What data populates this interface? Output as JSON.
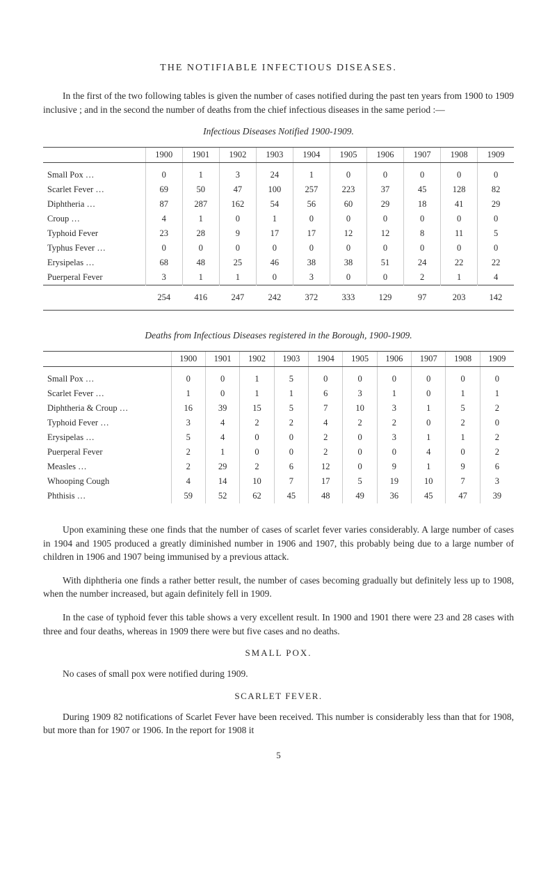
{
  "title": "THE NOTIFIABLE INFECTIOUS DISEASES.",
  "intro": "In the first of the two following tables is given the number of cases notified during the past ten years from 1900 to 1909 inclusive ; and in the second the number of deaths from the chief infectious diseases in the same period :—",
  "table1": {
    "caption": "Infectious Diseases Notified 1900-1909.",
    "years": [
      "1900",
      "1901",
      "1902",
      "1903",
      "1904",
      "1905",
      "1906",
      "1907",
      "1908",
      "1909"
    ],
    "rows": [
      {
        "label": "Small Pox …",
        "v": [
          "0",
          "1",
          "3",
          "24",
          "1",
          "0",
          "0",
          "0",
          "0",
          "0"
        ]
      },
      {
        "label": "Scarlet Fever …",
        "v": [
          "69",
          "50",
          "47",
          "100",
          "257",
          "223",
          "37",
          "45",
          "128",
          "82"
        ]
      },
      {
        "label": "Diphtheria …",
        "v": [
          "87",
          "287",
          "162",
          "54",
          "56",
          "60",
          "29",
          "18",
          "41",
          "29"
        ]
      },
      {
        "label": "Croup …",
        "v": [
          "4",
          "1",
          "0",
          "1",
          "0",
          "0",
          "0",
          "0",
          "0",
          "0"
        ]
      },
      {
        "label": "Typhoid Fever",
        "v": [
          "23",
          "28",
          "9",
          "17",
          "17",
          "12",
          "12",
          "8",
          "11",
          "5"
        ]
      },
      {
        "label": "Typhus Fever …",
        "v": [
          "0",
          "0",
          "0",
          "0",
          "0",
          "0",
          "0",
          "0",
          "0",
          "0"
        ]
      },
      {
        "label": "Erysipelas …",
        "v": [
          "68",
          "48",
          "25",
          "46",
          "38",
          "38",
          "51",
          "24",
          "22",
          "22"
        ]
      },
      {
        "label": "Puerperal Fever",
        "v": [
          "3",
          "1",
          "1",
          "0",
          "3",
          "0",
          "0",
          "2",
          "1",
          "4"
        ]
      }
    ],
    "totals": [
      "254",
      "416",
      "247",
      "242",
      "372",
      "333",
      "129",
      "97",
      "203",
      "142"
    ]
  },
  "table2": {
    "caption": "Deaths from Infectious Diseases registered in the Borough, 1900-1909.",
    "years": [
      "1900",
      "1901",
      "1902",
      "1903",
      "1904",
      "1905",
      "1906",
      "1907",
      "1908",
      "1909"
    ],
    "rows": [
      {
        "label": "Small Pox …",
        "v": [
          "0",
          "0",
          "1",
          "5",
          "0",
          "0",
          "0",
          "0",
          "0",
          "0"
        ]
      },
      {
        "label": "Scarlet Fever …",
        "v": [
          "1",
          "0",
          "1",
          "1",
          "6",
          "3",
          "1",
          "0",
          "1",
          "1"
        ]
      },
      {
        "label": "Diphtheria & Croup …",
        "v": [
          "16",
          "39",
          "15",
          "5",
          "7",
          "10",
          "3",
          "1",
          "5",
          "2"
        ]
      },
      {
        "label": "Typhoid Fever …",
        "v": [
          "3",
          "4",
          "2",
          "2",
          "4",
          "2",
          "2",
          "0",
          "2",
          "0"
        ]
      },
      {
        "label": "Erysipelas …",
        "v": [
          "5",
          "4",
          "0",
          "0",
          "2",
          "0",
          "3",
          "1",
          "1",
          "2"
        ]
      },
      {
        "label": "Puerperal Fever",
        "v": [
          "2",
          "1",
          "0",
          "0",
          "2",
          "0",
          "0",
          "4",
          "0",
          "2"
        ]
      },
      {
        "label": "Measles …",
        "v": [
          "2",
          "29",
          "2",
          "6",
          "12",
          "0",
          "9",
          "1",
          "9",
          "6"
        ]
      },
      {
        "label": "Whooping Cough",
        "v": [
          "4",
          "14",
          "10",
          "7",
          "17",
          "5",
          "19",
          "10",
          "7",
          "3"
        ]
      },
      {
        "label": "Phthisis …",
        "v": [
          "59",
          "52",
          "62",
          "45",
          "48",
          "49",
          "36",
          "45",
          "47",
          "39"
        ]
      }
    ]
  },
  "para2": "Upon examining these one finds that the number of cases of scarlet fever varies considerably. A large number of cases in 1904 and 1905 produced a greatly diminished number in 1906 and 1907, this probably being due to a large number of children in 1906 and 1907 being immunised by a previous attack.",
  "para3": "With diphtheria one finds a rather better result, the number of cases becoming gradually but definitely less up to 1908, when the number increased, but again definitely fell in 1909.",
  "para4": "In the case of typhoid fever this table shows a very excellent result. In 1900 and 1901 there were 23 and 28 cases with three and four deaths, whereas in 1909 there were but five cases and no deaths.",
  "smallpox": {
    "head": "SMALL POX.",
    "text": "No cases of small pox were notified during 1909."
  },
  "scarlet": {
    "head": "SCARLET FEVER.",
    "text": "During 1909 82 notifications of Scarlet Fever have been received. This number is considerably less than that for 1908, but more than for 1907 or 1906. In the report for 1908 it"
  },
  "pagenum": "5"
}
